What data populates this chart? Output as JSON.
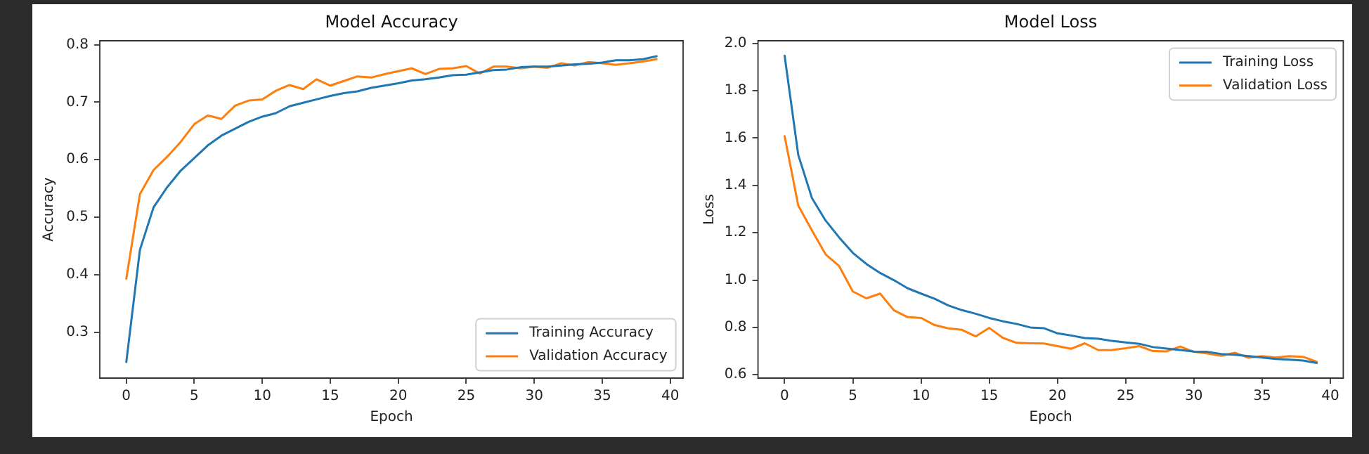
{
  "chart_data": [
    {
      "type": "line",
      "title": "Model Accuracy",
      "xlabel": "Epoch",
      "ylabel": "Accuracy",
      "x": [
        0,
        1,
        2,
        3,
        4,
        5,
        6,
        7,
        8,
        9,
        10,
        11,
        12,
        13,
        14,
        15,
        16,
        17,
        18,
        19,
        20,
        21,
        22,
        23,
        24,
        25,
        26,
        27,
        28,
        29,
        30,
        31,
        32,
        33,
        34,
        35,
        36,
        37,
        38,
        39
      ],
      "series": [
        {
          "name": "Training Accuracy",
          "color": "#1f77b4",
          "values": [
            0.248,
            0.443,
            0.517,
            0.552,
            0.581,
            0.603,
            0.625,
            0.642,
            0.654,
            0.666,
            0.675,
            0.681,
            0.693,
            0.699,
            0.705,
            0.711,
            0.716,
            0.719,
            0.725,
            0.729,
            0.733,
            0.738,
            0.74,
            0.743,
            0.747,
            0.748,
            0.752,
            0.756,
            0.757,
            0.761,
            0.762,
            0.762,
            0.764,
            0.766,
            0.767,
            0.769,
            0.773,
            0.773,
            0.775,
            0.78
          ]
        },
        {
          "name": "Validation Accuracy",
          "color": "#ff7f0e",
          "values": [
            0.393,
            0.54,
            0.582,
            0.605,
            0.631,
            0.662,
            0.677,
            0.671,
            0.694,
            0.703,
            0.705,
            0.72,
            0.73,
            0.723,
            0.74,
            0.729,
            0.737,
            0.745,
            0.743,
            0.749,
            0.754,
            0.759,
            0.749,
            0.758,
            0.759,
            0.763,
            0.75,
            0.762,
            0.762,
            0.759,
            0.762,
            0.76,
            0.768,
            0.764,
            0.77,
            0.768,
            0.765,
            0.768,
            0.771,
            0.775
          ]
        }
      ],
      "xlim": [
        -1.95,
        40.95
      ],
      "xticks": [
        0,
        5,
        10,
        15,
        20,
        25,
        30,
        35,
        40
      ],
      "ylim": [
        0.22,
        0.807
      ],
      "yticks": [
        0.3,
        0.4,
        0.5,
        0.6,
        0.7,
        0.8
      ],
      "grid": false,
      "legend": "bottom right",
      "marker": "none",
      "line_style": "solid"
    },
    {
      "type": "line",
      "title": "Model Loss",
      "xlabel": "Epoch",
      "ylabel": "Loss",
      "x": [
        0,
        1,
        2,
        3,
        4,
        5,
        6,
        7,
        8,
        9,
        10,
        11,
        12,
        13,
        14,
        15,
        16,
        17,
        18,
        19,
        20,
        21,
        22,
        23,
        24,
        25,
        26,
        27,
        28,
        29,
        30,
        31,
        32,
        33,
        34,
        35,
        36,
        37,
        38,
        39
      ],
      "series": [
        {
          "name": "Training Loss",
          "color": "#1f77b4",
          "values": [
            1.948,
            1.529,
            1.347,
            1.252,
            1.18,
            1.115,
            1.068,
            1.03,
            1.0,
            0.966,
            0.943,
            0.921,
            0.893,
            0.873,
            0.858,
            0.84,
            0.826,
            0.815,
            0.8,
            0.797,
            0.775,
            0.766,
            0.755,
            0.752,
            0.743,
            0.737,
            0.731,
            0.717,
            0.711,
            0.705,
            0.698,
            0.697,
            0.688,
            0.685,
            0.679,
            0.673,
            0.667,
            0.664,
            0.66,
            0.65
          ]
        },
        {
          "name": "Validation Loss",
          "color": "#ff7f0e",
          "values": [
            1.608,
            1.315,
            1.21,
            1.109,
            1.059,
            0.952,
            0.923,
            0.943,
            0.873,
            0.844,
            0.84,
            0.81,
            0.796,
            0.79,
            0.762,
            0.798,
            0.756,
            0.735,
            0.733,
            0.732,
            0.721,
            0.71,
            0.733,
            0.704,
            0.705,
            0.712,
            0.721,
            0.7,
            0.699,
            0.719,
            0.697,
            0.69,
            0.68,
            0.693,
            0.672,
            0.679,
            0.673,
            0.679,
            0.676,
            0.655
          ]
        }
      ],
      "xlim": [
        -1.95,
        40.95
      ],
      "xticks": [
        0,
        5,
        10,
        15,
        20,
        25,
        30,
        35,
        40
      ],
      "ylim": [
        0.586,
        2.011
      ],
      "yticks": [
        {
          "value": 0.6,
          "label": "0.6"
        },
        0.8,
        {
          "value": 1,
          "label": "1.0"
        },
        1.2,
        1.4,
        1.6,
        1.8,
        {
          "value": 2,
          "label": "2.0"
        }
      ],
      "grid": false,
      "legend": "top right",
      "marker": "none",
      "line_style": "solid"
    }
  ]
}
